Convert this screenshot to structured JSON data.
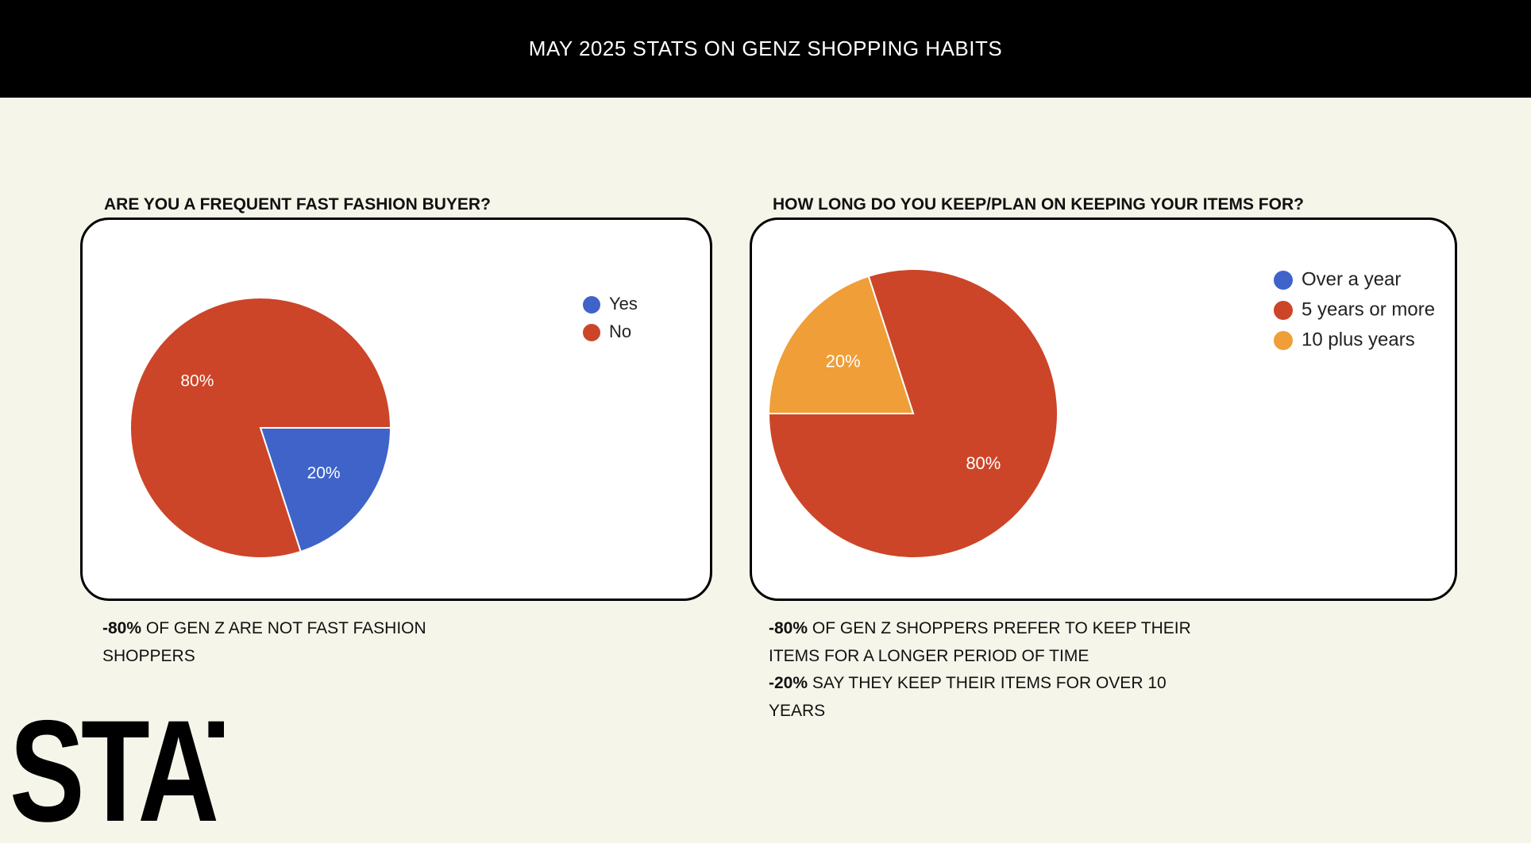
{
  "header": {
    "title": "MAY 2025 STATS ON GENZ SHOPPING HABITS"
  },
  "charts": {
    "left": {
      "heading": "ARE YOU A FREQUENT FAST FASHION BUYER?"
    },
    "right": {
      "heading": "HOW LONG DO YOU KEEP/PLAN ON KEEPING YOUR ITEMS FOR?"
    }
  },
  "chart_data": [
    {
      "type": "pie",
      "title": "ARE YOU A FREQUENT FAST FASHION BUYER?",
      "categories": [
        "Yes",
        "No"
      ],
      "values": [
        20,
        80
      ],
      "labels": [
        "20%",
        "80%"
      ],
      "colors": [
        "#3f63c9",
        "#cc4528"
      ],
      "legend": "top-right"
    },
    {
      "type": "pie",
      "title": "HOW LONG DO YOU KEEP/PLAN ON KEEPING YOUR ITEMS FOR?",
      "categories": [
        "Over a year",
        "5 years or more",
        "10 plus years"
      ],
      "values": [
        0,
        80,
        20
      ],
      "labels": [
        "",
        "80%",
        "20%"
      ],
      "colors": [
        "#3f63c9",
        "#cc4528",
        "#ef9e38"
      ],
      "legend": "top-right"
    }
  ],
  "captions": {
    "left": [
      {
        "bold": "-80%",
        "text": " OF GEN Z ARE NOT FAST FASHION"
      },
      {
        "bold": "",
        "text": "SHOPPERS"
      }
    ],
    "right": [
      {
        "bold": "-80%",
        "text": " OF GEN Z SHOPPERS PREFER TO KEEP THEIR"
      },
      {
        "bold": "",
        "text": "ITEMS FOR A LONGER PERIOD OF TIME"
      },
      {
        "bold": "-20%",
        "text": " SAY THEY KEEP THEIR ITEMS FOR OVER 10"
      },
      {
        "bold": "",
        "text": "YEARS"
      }
    ]
  },
  "footer": {
    "stats_word": "STATS"
  }
}
